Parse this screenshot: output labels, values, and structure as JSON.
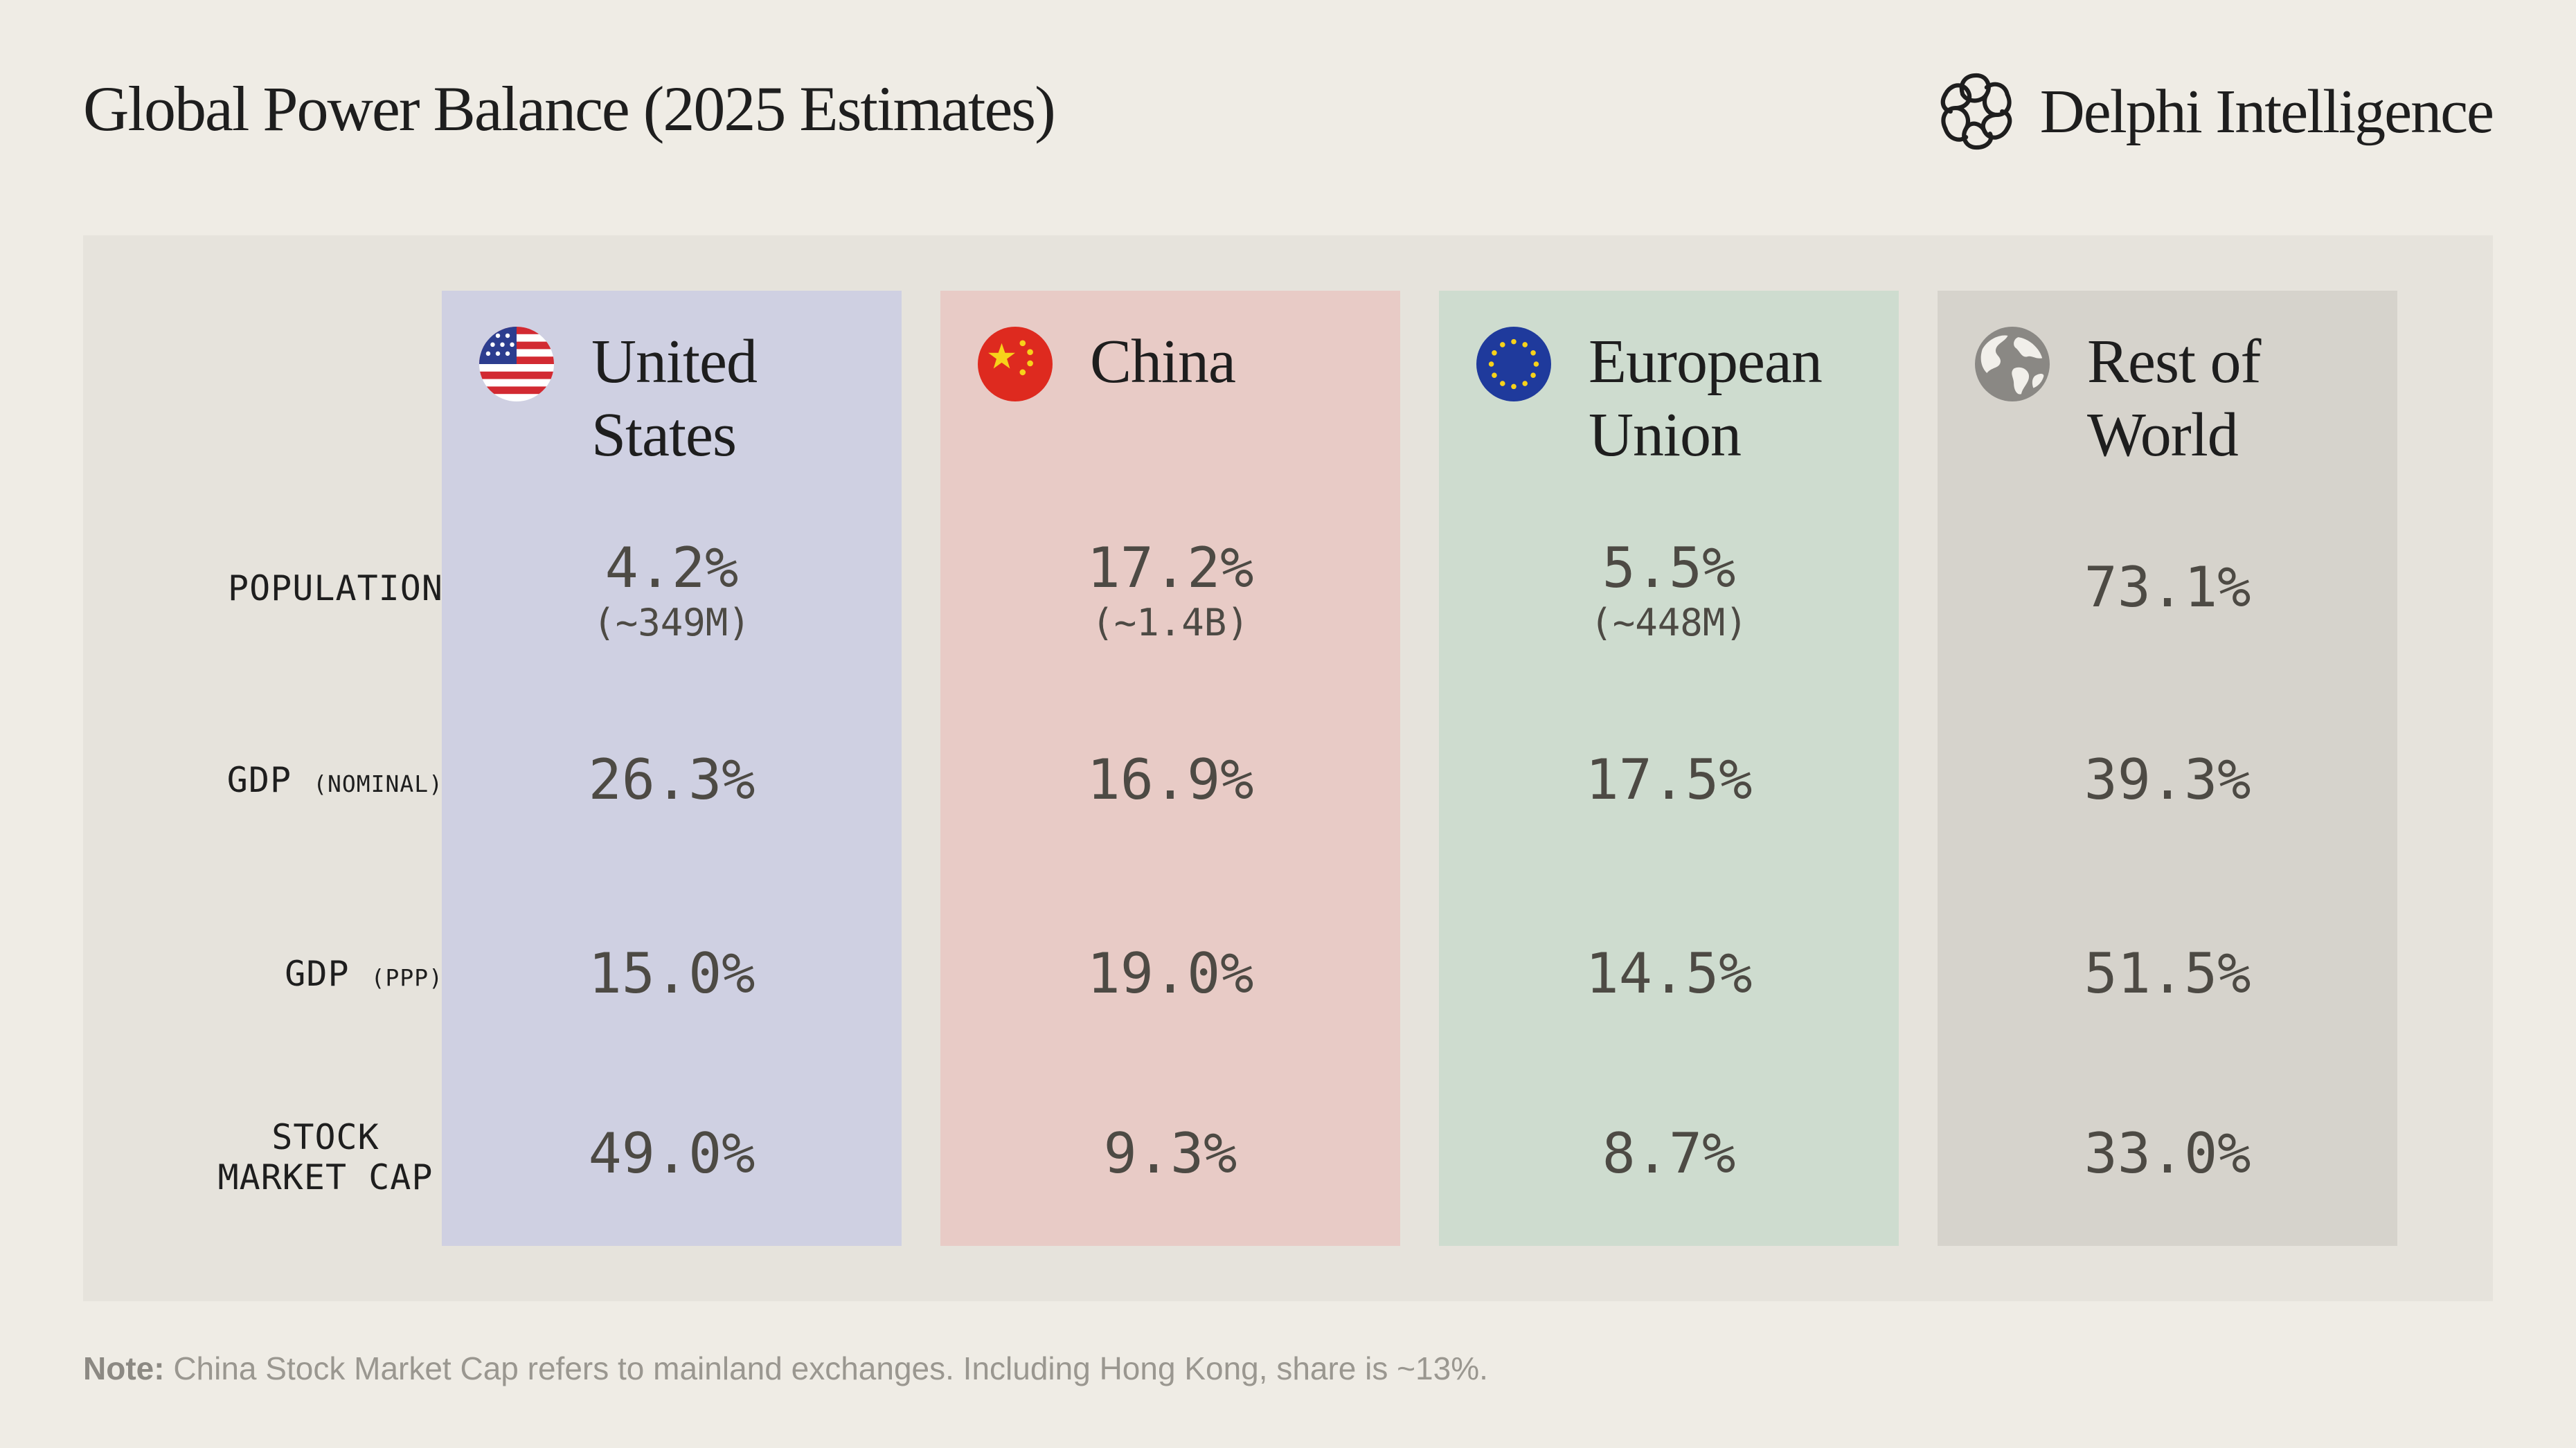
{
  "header": {
    "title": "Global Power Balance (2025 Estimates)",
    "brand_name": "Delphi Intelligence",
    "brand_icon": "knot-logo-icon"
  },
  "row_labels": {
    "population": "POPULATION",
    "gdp_nominal_main": "GDP",
    "gdp_nominal_small": "(NOMINAL)",
    "gdp_ppp_main": "GDP",
    "gdp_ppp_small": "(PPP)",
    "stock_line1": "STOCK",
    "stock_line2": "MARKET CAP"
  },
  "columns": [
    {
      "name_line1": "United",
      "name_line2": "States",
      "icon": "us-flag-icon",
      "color": "#cfd0e2",
      "population": "4.2%",
      "population_sub": "(~349M)",
      "gdp_nominal": "26.3%",
      "gdp_ppp": "15.0%",
      "stock_market_cap": "49.0%"
    },
    {
      "name_line1": "China",
      "name_line2": "",
      "icon": "china-flag-icon",
      "color": "#e8cbc6",
      "population": "17.2%",
      "population_sub": "(~1.4B)",
      "gdp_nominal": "16.9%",
      "gdp_ppp": "19.0%",
      "stock_market_cap": "9.3%"
    },
    {
      "name_line1": "European",
      "name_line2": "Union",
      "icon": "eu-flag-icon",
      "color": "#cedccf",
      "population": "5.5%",
      "population_sub": "(~448M)",
      "gdp_nominal": "17.5%",
      "gdp_ppp": "14.5%",
      "stock_market_cap": "8.7%"
    },
    {
      "name_line1": "Rest of",
      "name_line2": "World",
      "icon": "globe-icon",
      "color": "#d6d3cc",
      "population": "73.1%",
      "population_sub": "",
      "gdp_nominal": "39.3%",
      "gdp_ppp": "51.5%",
      "stock_market_cap": "33.0%"
    }
  ],
  "note": {
    "label": "Note:",
    "text": "China Stock Market Cap refers to mainland exchanges. Including Hong Kong, share is ~13%."
  }
}
